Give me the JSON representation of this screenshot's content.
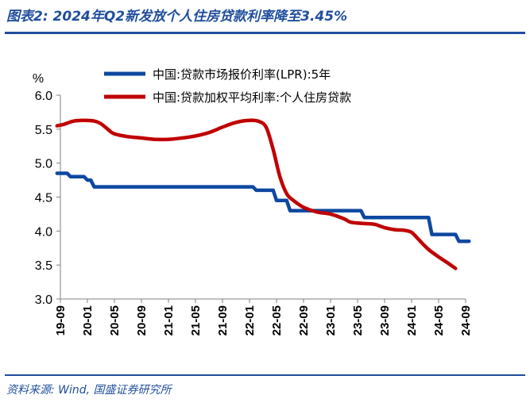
{
  "header": {
    "title": "图表2: 2024年Q2新发放个人住房贷款利率降至3.45%"
  },
  "footer": {
    "source": "资料来源: Wind, 国盛证券研究所"
  },
  "colors": {
    "brand": "#1f4e9c",
    "lpr": "#0d47a1",
    "mortgage": "#c00000"
  },
  "chart_data": {
    "type": "line",
    "title": "",
    "ylabel": "%",
    "ylim": [
      3.0,
      6.0
    ],
    "yticks": [
      "3.0",
      "3.5",
      "4.0",
      "4.5",
      "5.0",
      "5.5",
      "6.0"
    ],
    "xlim": [
      0,
      60
    ],
    "xticks": [
      {
        "label": "19-09",
        "x": 0
      },
      {
        "label": "20-01",
        "x": 4
      },
      {
        "label": "20-05",
        "x": 8
      },
      {
        "label": "20-09",
        "x": 12
      },
      {
        "label": "21-01",
        "x": 16
      },
      {
        "label": "21-05",
        "x": 20
      },
      {
        "label": "21-09",
        "x": 24
      },
      {
        "label": "22-01",
        "x": 28
      },
      {
        "label": "22-05",
        "x": 32
      },
      {
        "label": "22-09",
        "x": 36
      },
      {
        "label": "23-01",
        "x": 40
      },
      {
        "label": "23-05",
        "x": 44
      },
      {
        "label": "23-09",
        "x": 48
      },
      {
        "label": "24-01",
        "x": 52
      },
      {
        "label": "24-05",
        "x": 56
      },
      {
        "label": "24-09",
        "x": 60
      }
    ],
    "series": [
      {
        "name": "中国:贷款市场报价利率(LPR):5年",
        "color": "#0d47a1",
        "step": true,
        "points": [
          [
            -0.5,
            4.85
          ],
          [
            1,
            4.85
          ],
          [
            1.5,
            4.8
          ],
          [
            3.5,
            4.8
          ],
          [
            4,
            4.75
          ],
          [
            4.5,
            4.75
          ],
          [
            5,
            4.65
          ],
          [
            28.5,
            4.65
          ],
          [
            29,
            4.6
          ],
          [
            31.5,
            4.6
          ],
          [
            32,
            4.45
          ],
          [
            33.5,
            4.45
          ],
          [
            34,
            4.3
          ],
          [
            44.5,
            4.3
          ],
          [
            45,
            4.2
          ],
          [
            54.5,
            4.2
          ],
          [
            55,
            3.95
          ],
          [
            58.5,
            3.95
          ],
          [
            59,
            3.85
          ],
          [
            60.5,
            3.85
          ]
        ]
      },
      {
        "name": "中国:贷款加权平均利率:个人住房贷款",
        "color": "#c00000",
        "step": false,
        "points": [
          [
            -0.5,
            5.55
          ],
          [
            0.5,
            5.57
          ],
          [
            2,
            5.62
          ],
          [
            3.5,
            5.63
          ],
          [
            5,
            5.62
          ],
          [
            6,
            5.58
          ],
          [
            7,
            5.5
          ],
          [
            8,
            5.43
          ],
          [
            10,
            5.39
          ],
          [
            12,
            5.37
          ],
          [
            14,
            5.35
          ],
          [
            16,
            5.35
          ],
          [
            18,
            5.37
          ],
          [
            20,
            5.4
          ],
          [
            22,
            5.45
          ],
          [
            24,
            5.53
          ],
          [
            26,
            5.6
          ],
          [
            28,
            5.63
          ],
          [
            29.5,
            5.61
          ],
          [
            30.5,
            5.52
          ],
          [
            31.5,
            5.2
          ],
          [
            32.5,
            4.8
          ],
          [
            33.5,
            4.55
          ],
          [
            34.5,
            4.45
          ],
          [
            36,
            4.35
          ],
          [
            38,
            4.28
          ],
          [
            40,
            4.25
          ],
          [
            42,
            4.18
          ],
          [
            43,
            4.13
          ],
          [
            45,
            4.11
          ],
          [
            46.5,
            4.1
          ],
          [
            48,
            4.05
          ],
          [
            49.5,
            4.02
          ],
          [
            51,
            4.01
          ],
          [
            52,
            3.98
          ],
          [
            53,
            3.88
          ],
          [
            54.5,
            3.73
          ],
          [
            56,
            3.62
          ],
          [
            57.5,
            3.52
          ],
          [
            58.5,
            3.45
          ]
        ]
      }
    ],
    "legend_position": "top"
  }
}
